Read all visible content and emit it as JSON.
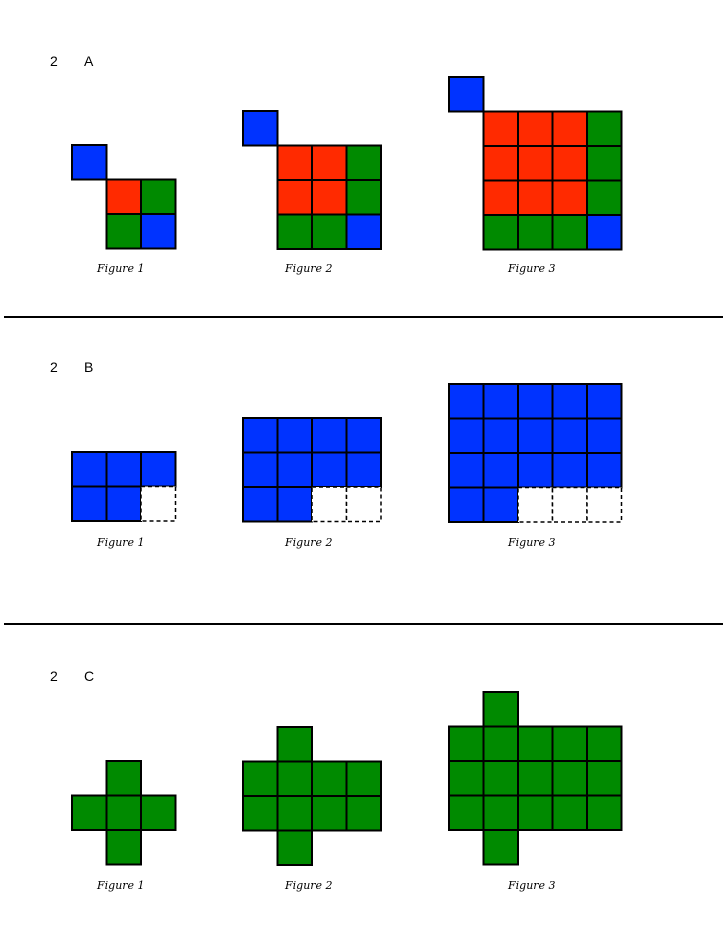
{
  "colors": {
    "blue": "#0033ff",
    "red": "#ff2a00",
    "green": "#008a00",
    "line": "#000000",
    "white": "#ffffff"
  },
  "sections": [
    {
      "number": "2",
      "letter": "A",
      "figures": [
        {
          "caption": "Figure 1",
          "cells": [
            {
              "c": 0,
              "r": 0,
              "fill": "blue"
            },
            {
              "c": 1,
              "r": 1,
              "fill": "red"
            },
            {
              "c": 2,
              "r": 1,
              "fill": "green"
            },
            {
              "c": 1,
              "r": 2,
              "fill": "green"
            },
            {
              "c": 2,
              "r": 2,
              "fill": "blue"
            }
          ]
        },
        {
          "caption": "Figure 2",
          "cells": [
            {
              "c": 0,
              "r": 0,
              "fill": "blue"
            },
            {
              "c": 1,
              "r": 1,
              "fill": "red"
            },
            {
              "c": 2,
              "r": 1,
              "fill": "red"
            },
            {
              "c": 3,
              "r": 1,
              "fill": "green"
            },
            {
              "c": 1,
              "r": 2,
              "fill": "red"
            },
            {
              "c": 2,
              "r": 2,
              "fill": "red"
            },
            {
              "c": 3,
              "r": 2,
              "fill": "green"
            },
            {
              "c": 1,
              "r": 3,
              "fill": "green"
            },
            {
              "c": 2,
              "r": 3,
              "fill": "green"
            },
            {
              "c": 3,
              "r": 3,
              "fill": "blue"
            }
          ]
        },
        {
          "caption": "Figure 3",
          "cells": [
            {
              "c": 0,
              "r": 0,
              "fill": "blue"
            },
            {
              "c": 1,
              "r": 1,
              "fill": "red"
            },
            {
              "c": 2,
              "r": 1,
              "fill": "red"
            },
            {
              "c": 3,
              "r": 1,
              "fill": "red"
            },
            {
              "c": 4,
              "r": 1,
              "fill": "green"
            },
            {
              "c": 1,
              "r": 2,
              "fill": "red"
            },
            {
              "c": 2,
              "r": 2,
              "fill": "red"
            },
            {
              "c": 3,
              "r": 2,
              "fill": "red"
            },
            {
              "c": 4,
              "r": 2,
              "fill": "green"
            },
            {
              "c": 1,
              "r": 3,
              "fill": "red"
            },
            {
              "c": 2,
              "r": 3,
              "fill": "red"
            },
            {
              "c": 3,
              "r": 3,
              "fill": "red"
            },
            {
              "c": 4,
              "r": 3,
              "fill": "green"
            },
            {
              "c": 1,
              "r": 4,
              "fill": "green"
            },
            {
              "c": 2,
              "r": 4,
              "fill": "green"
            },
            {
              "c": 3,
              "r": 4,
              "fill": "green"
            },
            {
              "c": 4,
              "r": 4,
              "fill": "blue"
            }
          ]
        }
      ]
    },
    {
      "number": "2",
      "letter": "B",
      "figures": [
        {
          "caption": "Figure 1",
          "cells": [
            {
              "c": 0,
              "r": 0,
              "fill": "blue"
            },
            {
              "c": 1,
              "r": 0,
              "fill": "blue"
            },
            {
              "c": 2,
              "r": 0,
              "fill": "blue"
            },
            {
              "c": 0,
              "r": 1,
              "fill": "blue"
            },
            {
              "c": 1,
              "r": 1,
              "fill": "blue"
            },
            {
              "c": 2,
              "r": 1,
              "fill": "empty"
            }
          ]
        },
        {
          "caption": "Figure 2",
          "cells": [
            {
              "c": 0,
              "r": 0,
              "fill": "blue"
            },
            {
              "c": 1,
              "r": 0,
              "fill": "blue"
            },
            {
              "c": 2,
              "r": 0,
              "fill": "blue"
            },
            {
              "c": 3,
              "r": 0,
              "fill": "blue"
            },
            {
              "c": 0,
              "r": 1,
              "fill": "blue"
            },
            {
              "c": 1,
              "r": 1,
              "fill": "blue"
            },
            {
              "c": 2,
              "r": 1,
              "fill": "blue"
            },
            {
              "c": 3,
              "r": 1,
              "fill": "blue"
            },
            {
              "c": 0,
              "r": 2,
              "fill": "blue"
            },
            {
              "c": 1,
              "r": 2,
              "fill": "blue"
            },
            {
              "c": 2,
              "r": 2,
              "fill": "empty"
            },
            {
              "c": 3,
              "r": 2,
              "fill": "empty"
            }
          ]
        },
        {
          "caption": "Figure 3",
          "cells": [
            {
              "c": 0,
              "r": 0,
              "fill": "blue"
            },
            {
              "c": 1,
              "r": 0,
              "fill": "blue"
            },
            {
              "c": 2,
              "r": 0,
              "fill": "blue"
            },
            {
              "c": 3,
              "r": 0,
              "fill": "blue"
            },
            {
              "c": 4,
              "r": 0,
              "fill": "blue"
            },
            {
              "c": 0,
              "r": 1,
              "fill": "blue"
            },
            {
              "c": 1,
              "r": 1,
              "fill": "blue"
            },
            {
              "c": 2,
              "r": 1,
              "fill": "blue"
            },
            {
              "c": 3,
              "r": 1,
              "fill": "blue"
            },
            {
              "c": 4,
              "r": 1,
              "fill": "blue"
            },
            {
              "c": 0,
              "r": 2,
              "fill": "blue"
            },
            {
              "c": 1,
              "r": 2,
              "fill": "blue"
            },
            {
              "c": 2,
              "r": 2,
              "fill": "blue"
            },
            {
              "c": 3,
              "r": 2,
              "fill": "blue"
            },
            {
              "c": 4,
              "r": 2,
              "fill": "blue"
            },
            {
              "c": 0,
              "r": 3,
              "fill": "blue"
            },
            {
              "c": 1,
              "r": 3,
              "fill": "blue"
            },
            {
              "c": 2,
              "r": 3,
              "fill": "empty"
            },
            {
              "c": 3,
              "r": 3,
              "fill": "empty"
            },
            {
              "c": 4,
              "r": 3,
              "fill": "empty"
            }
          ]
        }
      ]
    },
    {
      "number": "2",
      "letter": "C",
      "figures": [
        {
          "caption": "Figure 1",
          "cells": [
            {
              "c": 1,
              "r": 0,
              "fill": "green"
            },
            {
              "c": 0,
              "r": 1,
              "fill": "green"
            },
            {
              "c": 1,
              "r": 1,
              "fill": "green"
            },
            {
              "c": 2,
              "r": 1,
              "fill": "green"
            },
            {
              "c": 1,
              "r": 2,
              "fill": "green"
            }
          ]
        },
        {
          "caption": "Figure 2",
          "cells": [
            {
              "c": 1,
              "r": 0,
              "fill": "green"
            },
            {
              "c": 0,
              "r": 1,
              "fill": "green"
            },
            {
              "c": 1,
              "r": 1,
              "fill": "green"
            },
            {
              "c": 2,
              "r": 1,
              "fill": "green"
            },
            {
              "c": 3,
              "r": 1,
              "fill": "green"
            },
            {
              "c": 0,
              "r": 2,
              "fill": "green"
            },
            {
              "c": 1,
              "r": 2,
              "fill": "green"
            },
            {
              "c": 2,
              "r": 2,
              "fill": "green"
            },
            {
              "c": 3,
              "r": 2,
              "fill": "green"
            },
            {
              "c": 1,
              "r": 3,
              "fill": "green"
            }
          ]
        },
        {
          "caption": "Figure 3",
          "cells": [
            {
              "c": 1,
              "r": 0,
              "fill": "green"
            },
            {
              "c": 0,
              "r": 1,
              "fill": "green"
            },
            {
              "c": 1,
              "r": 1,
              "fill": "green"
            },
            {
              "c": 2,
              "r": 1,
              "fill": "green"
            },
            {
              "c": 3,
              "r": 1,
              "fill": "green"
            },
            {
              "c": 4,
              "r": 1,
              "fill": "green"
            },
            {
              "c": 0,
              "r": 2,
              "fill": "green"
            },
            {
              "c": 1,
              "r": 2,
              "fill": "green"
            },
            {
              "c": 2,
              "r": 2,
              "fill": "green"
            },
            {
              "c": 3,
              "r": 2,
              "fill": "green"
            },
            {
              "c": 4,
              "r": 2,
              "fill": "green"
            },
            {
              "c": 0,
              "r": 3,
              "fill": "green"
            },
            {
              "c": 1,
              "r": 3,
              "fill": "green"
            },
            {
              "c": 2,
              "r": 3,
              "fill": "green"
            },
            {
              "c": 3,
              "r": 3,
              "fill": "green"
            },
            {
              "c": 4,
              "r": 3,
              "fill": "green"
            },
            {
              "c": 1,
              "r": 4,
              "fill": "green"
            }
          ]
        }
      ]
    }
  ]
}
